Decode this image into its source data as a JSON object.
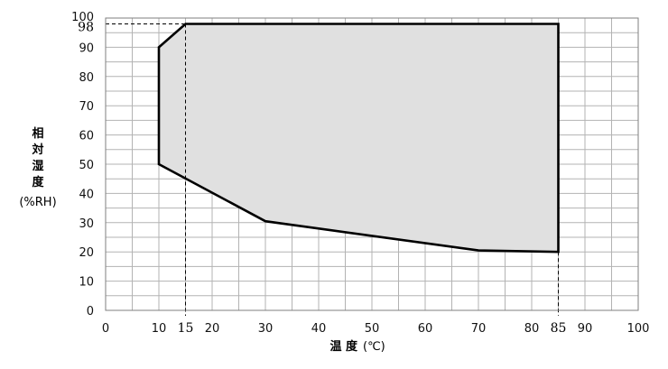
{
  "chart_data": {
    "type": "area",
    "xlabel": "温 度",
    "xunit": "(℃)",
    "ylabel_lines": [
      "相",
      "対",
      "湿",
      "度"
    ],
    "yunit": "(%RH)",
    "xlim": [
      0,
      100
    ],
    "ylim": [
      0,
      100
    ],
    "x_ticks": [
      0,
      10,
      15,
      20,
      30,
      40,
      50,
      60,
      70,
      80,
      85,
      90,
      100
    ],
    "y_ticks": [
      0,
      10,
      20,
      30,
      40,
      50,
      60,
      70,
      80,
      90,
      98,
      100
    ],
    "highlight_x": [
      15,
      85
    ],
    "highlight_y": [
      98
    ],
    "grid": true,
    "region": [
      {
        "x": 10,
        "y": 90
      },
      {
        "x": 15,
        "y": 98
      },
      {
        "x": 85,
        "y": 98
      },
      {
        "x": 85,
        "y": 20
      },
      {
        "x": 70,
        "y": 20.5
      },
      {
        "x": 30,
        "y": 30.5
      },
      {
        "x": 10,
        "y": 50
      }
    ],
    "fill_color": "#e0e0e0",
    "line_color": "#000000"
  }
}
